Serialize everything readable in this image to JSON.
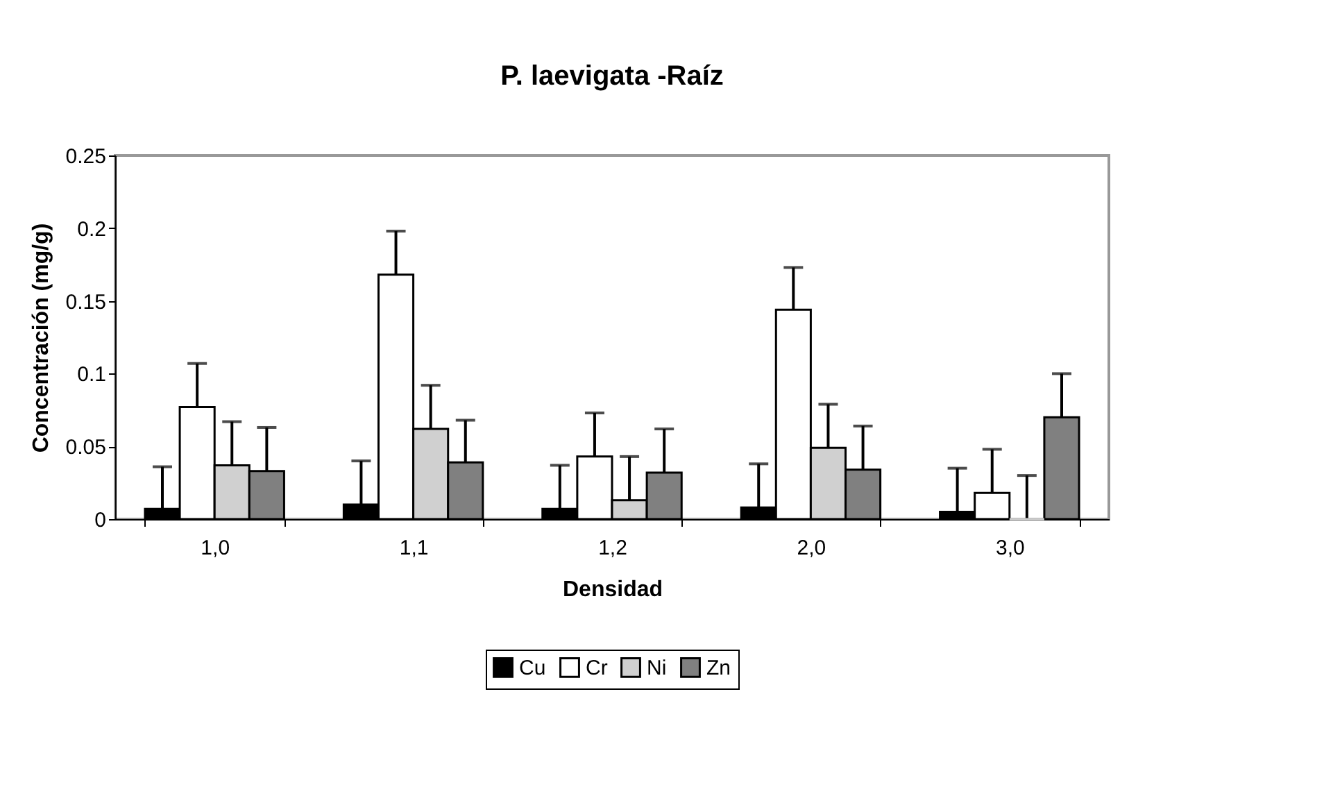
{
  "chart_data": {
    "type": "bar",
    "title": "P. laevigata -Raíz",
    "xlabel": "Densidad",
    "ylabel": "Concentración (mg/g)",
    "categories": [
      "1,0",
      "1,1",
      "1,2",
      "2,0",
      "3,0"
    ],
    "series": [
      {
        "name": "Cu",
        "color": "#000000",
        "values": [
          0.007,
          0.01,
          0.007,
          0.008,
          0.005
        ],
        "errors": [
          [
            0.007,
            0.036
          ],
          [
            0.01,
            0.04
          ],
          [
            0.007,
            0.037
          ],
          [
            0.008,
            0.038
          ],
          [
            0.005,
            0.035
          ]
        ]
      },
      {
        "name": "Cr",
        "color": "#ffffff",
        "values": [
          0.077,
          0.168,
          0.043,
          0.144,
          0.018
        ],
        "errors": [
          [
            0.077,
            0.107
          ],
          [
            0.168,
            0.198
          ],
          [
            0.043,
            0.073
          ],
          [
            0.144,
            0.173
          ],
          [
            0.018,
            0.048
          ]
        ]
      },
      {
        "name": "Ni",
        "color": "#d0d0d0",
        "values": [
          0.037,
          0.062,
          0.013,
          0.049,
          0
        ],
        "errors": [
          [
            0.037,
            0.067
          ],
          [
            0.062,
            0.092
          ],
          [
            0.013,
            0.043
          ],
          [
            0.049,
            0.079
          ],
          [
            0,
            0.03
          ]
        ]
      },
      {
        "name": "Zn",
        "color": "#808080",
        "values": [
          0.033,
          0.039,
          0.032,
          0.034,
          0.07
        ],
        "errors": [
          [
            0.033,
            0.063
          ],
          [
            0.039,
            0.068
          ],
          [
            0.032,
            0.062
          ],
          [
            0.034,
            0.064
          ],
          [
            0.07,
            0.1
          ]
        ]
      }
    ],
    "ylim": [
      0,
      0.25
    ],
    "yticks": [
      0,
      0.05,
      0.1,
      0.15,
      0.2,
      0.25
    ],
    "legend": "bottom"
  }
}
